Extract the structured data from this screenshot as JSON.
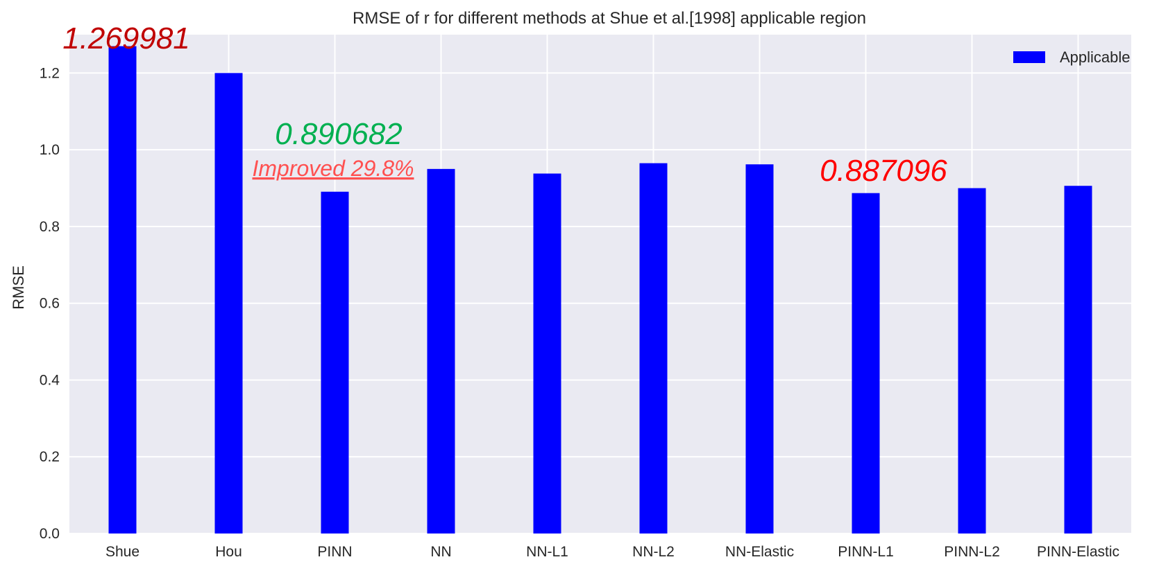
{
  "chart_data": {
    "type": "bar",
    "title": "RMSE of r for different methods at Shue et al.[1998] applicable region",
    "xlabel": "",
    "ylabel": "RMSE",
    "categories": [
      "Shue",
      "Hou",
      "PINN",
      "NN",
      "NN-L1",
      "NN-L2",
      "NN-Elastic",
      "PINN-L1",
      "PINN-L2",
      "PINN-Elastic"
    ],
    "series": [
      {
        "name": "Applicable",
        "color": "#0000ff",
        "values": [
          1.269981,
          1.2,
          0.890682,
          0.95,
          0.938,
          0.965,
          0.962,
          0.887096,
          0.9,
          0.906
        ]
      }
    ],
    "ylim": [
      0,
      1.3
    ],
    "yticks": [
      "0.0",
      "0.2",
      "0.4",
      "0.6",
      "0.8",
      "1.0",
      "1.2"
    ],
    "grid": true,
    "legend_position": "top-right",
    "background_color": "#eaeaf2",
    "annotations": {
      "shue_value": {
        "text": "1.269981",
        "color": "#c00000"
      },
      "pinn_value": {
        "text": "0.890682",
        "color": "#00b050"
      },
      "pinn_improved": {
        "text": "Improved 29.8%",
        "color": "#ff5050"
      },
      "pinn_l1_value": {
        "text": "0.887096",
        "color": "#ff0000"
      }
    }
  }
}
